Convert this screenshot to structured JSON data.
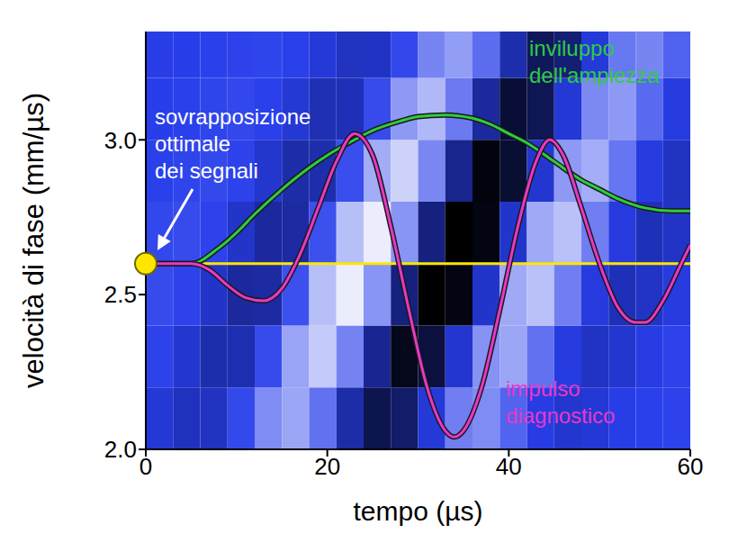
{
  "chart_data": {
    "type": "line",
    "x_label": "tempo (µs)",
    "y_label": "velocità di fase (mm/µs)",
    "xlim": [
      0,
      60
    ],
    "ylim": [
      2,
      3.35
    ],
    "xticks": [
      0,
      20,
      40,
      60
    ],
    "yticks": [
      {
        "value": 2,
        "label": "2.0"
      },
      2.5,
      {
        "value": 3,
        "label": "3.0"
      }
    ],
    "grid": false,
    "heatmap": {
      "x_edges": [
        0,
        3,
        6,
        9,
        12,
        15,
        18,
        21,
        24,
        27,
        30,
        33,
        36,
        39,
        42,
        45,
        48,
        51,
        54,
        57,
        60
      ],
      "y_edges": [
        2.0,
        2.2,
        2.4,
        2.6,
        2.8,
        3.0,
        3.2,
        3.4
      ],
      "values": [
        [
          -0.08,
          -0.17,
          -0.16,
          0.05,
          0.35,
          0.47,
          0.23,
          -0.25,
          -0.58,
          -0.48,
          -0.07,
          0.29,
          0.35,
          0.17,
          -0.03,
          -0.11,
          -0.08,
          -0.02,
          0.01,
          0.02
        ],
        [
          0.02,
          -0.1,
          -0.23,
          -0.22,
          0.06,
          0.46,
          0.63,
          0.31,
          -0.33,
          -0.77,
          -0.64,
          -0.1,
          0.38,
          0.47,
          0.23,
          -0.04,
          -0.15,
          -0.11,
          -0.03,
          0.02
        ],
        [
          0.06,
          0.02,
          -0.13,
          -0.29,
          -0.27,
          0.08,
          0.58,
          0.79,
          0.39,
          -0.41,
          -0.96,
          -0.8,
          -0.12,
          0.48,
          0.59,
          0.29,
          -0.05,
          -0.19,
          -0.14,
          -0.04
        ],
        [
          0.04,
          0.06,
          0.02,
          -0.13,
          -0.29,
          -0.27,
          0.08,
          0.58,
          0.79,
          0.39,
          -0.41,
          -0.96,
          -0.8,
          -0.12,
          0.48,
          0.59,
          0.29,
          -0.05,
          -0.19,
          -0.14
        ],
        [
          0.01,
          0.03,
          0.05,
          0.02,
          -0.11,
          -0.25,
          -0.23,
          0.07,
          0.49,
          0.67,
          0.33,
          -0.35,
          -0.82,
          -0.68,
          -0.1,
          0.41,
          0.5,
          0.25,
          -0.04,
          -0.16
        ],
        [
          0,
          0.01,
          0.03,
          0.04,
          0.01,
          -0.09,
          -0.2,
          -0.19,
          0.06,
          0.41,
          0.55,
          0.27,
          -0.29,
          -0.67,
          -0.56,
          -0.08,
          0.34,
          0.41,
          0.2,
          -0.04
        ],
        [
          -0.01,
          0,
          0.01,
          0.02,
          0.03,
          0.01,
          -0.07,
          -0.16,
          -0.15,
          0.04,
          0.32,
          0.43,
          0.21,
          -0.23,
          -0.53,
          -0.44,
          -0.07,
          0.26,
          0.32,
          0.16
        ]
      ]
    },
    "series": [
      {
        "type": "line",
        "color": "#ffe600",
        "x": [
          0,
          60
        ],
        "values": [
          2.6,
          2.6
        ]
      },
      {
        "type": "line",
        "color": "#2ecc40",
        "x": [
          0,
          5,
          8,
          10,
          12,
          15,
          18,
          20,
          23,
          25,
          28,
          30,
          33,
          36,
          38,
          40,
          42,
          45,
          48,
          50,
          52,
          55,
          58,
          60
        ],
        "values": [
          2.6,
          2.6,
          2.65,
          2.7,
          2.76,
          2.84,
          2.91,
          2.95,
          3.0,
          3.03,
          3.06,
          3.075,
          3.08,
          3.07,
          3.05,
          3.02,
          2.99,
          2.93,
          2.87,
          2.84,
          2.81,
          2.78,
          2.77,
          2.77
        ]
      },
      {
        "type": "line",
        "color": "#e838c8",
        "x": [
          0,
          5,
          7,
          9,
          11,
          13,
          15,
          17,
          19,
          21,
          23,
          25,
          27,
          29,
          31,
          33,
          34,
          35,
          37,
          39,
          41,
          43,
          44.5,
          46,
          48,
          50,
          52,
          54,
          55,
          57,
          59,
          60
        ],
        "values": [
          2.6,
          2.6,
          2.58,
          2.53,
          2.49,
          2.48,
          2.52,
          2.63,
          2.78,
          2.93,
          3.02,
          2.95,
          2.72,
          2.45,
          2.2,
          2.06,
          2.04,
          2.06,
          2.2,
          2.45,
          2.72,
          2.93,
          3.0,
          2.95,
          2.78,
          2.6,
          2.46,
          2.41,
          2.41,
          2.48,
          2.6,
          2.66
        ]
      },
      {
        "type": "scatter",
        "color": "#ffe600",
        "marker": "circle",
        "x": [
          0
        ],
        "values": [
          2.6
        ]
      }
    ],
    "annotations": [
      {
        "text": "sovrapposizione ottimale dei segnali",
        "color": "#ffffff"
      },
      {
        "text": "inviluppo dell'ampiezza",
        "color": "#2ecc40"
      },
      {
        "text": "impulso diagnostico",
        "color": "#e838c8"
      }
    ]
  }
}
